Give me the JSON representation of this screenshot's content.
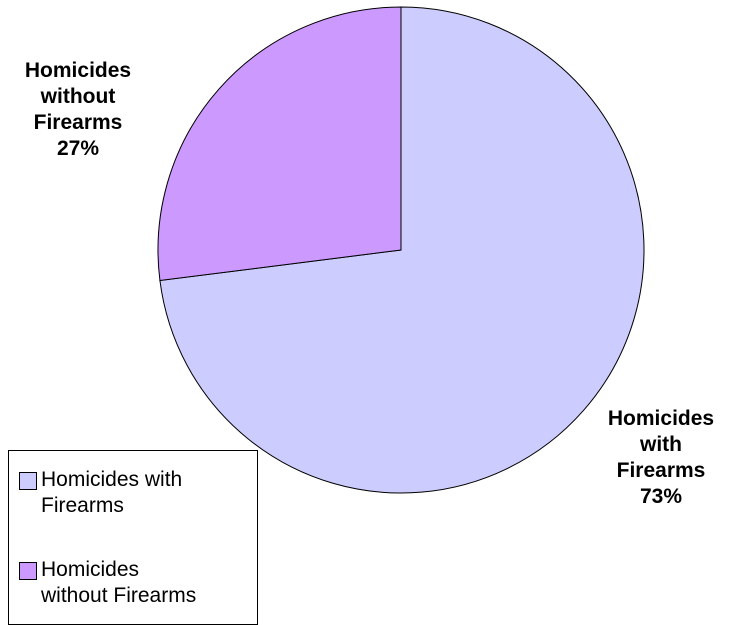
{
  "chart_data": {
    "type": "pie",
    "title": "",
    "slices": [
      {
        "label_lines": [
          "Homicides",
          "with",
          "Firearms"
        ],
        "percent_text": "73%",
        "value": 73,
        "color": "#CCCCFF",
        "legend_lines": [
          "Homicides with",
          "Firearms"
        ]
      },
      {
        "label_lines": [
          "Homicides",
          "without",
          "Firearms"
        ],
        "percent_text": "27%",
        "value": 27,
        "color": "#CC99FF",
        "legend_lines": [
          "Homicides",
          "without Firearms"
        ]
      }
    ],
    "legend_position": "bottom-left"
  }
}
